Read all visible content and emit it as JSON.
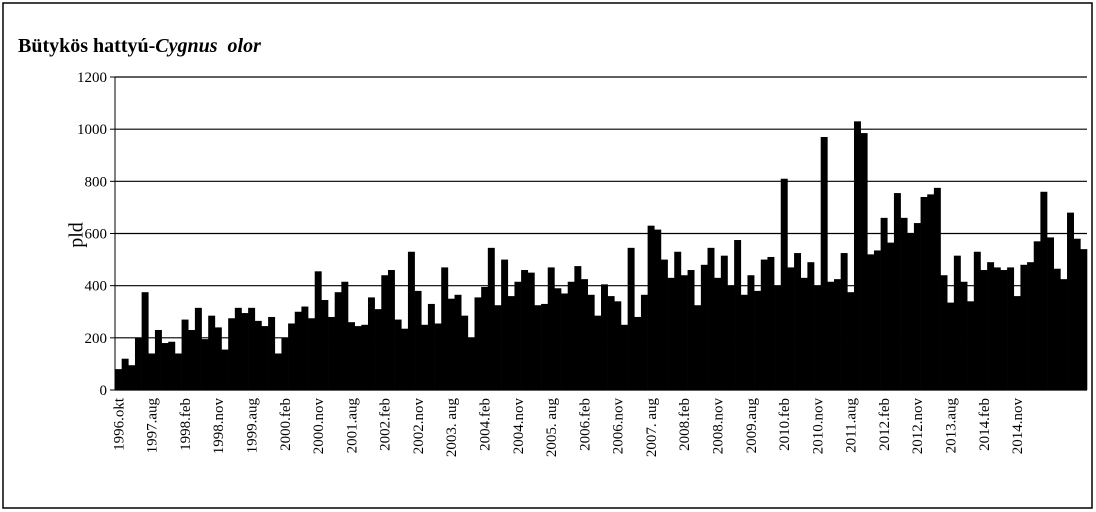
{
  "chart_data": {
    "type": "bar",
    "title": {
      "text": "Bütykös hattyú-",
      "species": "Cygnus  olor"
    },
    "y_label": "pld",
    "color": "#000000",
    "grid": true,
    "ylim": [
      0,
      1200
    ],
    "yticks": [
      0,
      200,
      400,
      600,
      800,
      1000,
      1200
    ],
    "categories": [
      "1996.okt",
      null,
      null,
      null,
      null,
      "1997.aug",
      null,
      null,
      null,
      null,
      "1998.feb",
      null,
      null,
      null,
      null,
      "1998.nov",
      null,
      null,
      null,
      null,
      "1999.aug",
      null,
      null,
      null,
      null,
      "2000.feb",
      null,
      null,
      null,
      null,
      "2000.nov",
      null,
      null,
      null,
      null,
      "2001.aug",
      null,
      null,
      null,
      null,
      "2002.feb",
      null,
      null,
      null,
      null,
      "2002.nov",
      null,
      null,
      null,
      null,
      "2003. aug",
      null,
      null,
      null,
      null,
      "2004.feb",
      null,
      null,
      null,
      null,
      "2004.nov",
      null,
      null,
      null,
      null,
      "2005. aug",
      null,
      null,
      null,
      null,
      "2006.feb",
      null,
      null,
      null,
      null,
      "2006.nov",
      null,
      null,
      null,
      null,
      "2007. aug",
      null,
      null,
      null,
      null,
      "2008.feb",
      null,
      null,
      null,
      null,
      "2008.nov",
      null,
      null,
      null,
      null,
      "2009.aug",
      null,
      null,
      null,
      null,
      "2010.feb",
      null,
      null,
      null,
      null,
      "2010.nov",
      null,
      null,
      null,
      null,
      "2011.aug",
      null,
      null,
      null,
      null,
      "2012.feb",
      null,
      null,
      null,
      null,
      "2012.nov",
      null,
      null,
      null,
      null,
      "2013.aug",
      null,
      null,
      null,
      null,
      "2014.feb",
      null,
      null,
      null,
      null,
      "2014.nov",
      null,
      null,
      null,
      null,
      null,
      null,
      null,
      null,
      null,
      null
    ],
    "values": [
      80,
      120,
      95,
      200,
      375,
      140,
      230,
      180,
      185,
      140,
      270,
      230,
      315,
      195,
      285,
      240,
      155,
      275,
      315,
      295,
      315,
      265,
      245,
      280,
      140,
      200,
      255,
      300,
      320,
      275,
      455,
      345,
      280,
      375,
      415,
      260,
      245,
      250,
      355,
      310,
      440,
      460,
      270,
      235,
      530,
      380,
      250,
      330,
      255,
      470,
      350,
      365,
      285,
      200,
      355,
      395,
      545,
      325,
      500,
      360,
      415,
      460,
      450,
      325,
      330,
      470,
      390,
      370,
      415,
      475,
      425,
      365,
      285,
      405,
      360,
      340,
      250,
      545,
      280,
      365,
      630,
      615,
      500,
      430,
      530,
      440,
      460,
      325,
      480,
      545,
      430,
      515,
      400,
      575,
      365,
      440,
      380,
      500,
      510,
      400,
      810,
      470,
      525,
      430,
      490,
      400,
      970,
      415,
      425,
      525,
      375,
      1030,
      985,
      520,
      535,
      660,
      565,
      755,
      660,
      600,
      640,
      740,
      750,
      775,
      440,
      335,
      515,
      415,
      340,
      530,
      460,
      490,
      470,
      460,
      470,
      360,
      480,
      490,
      570,
      760,
      585,
      465,
      425,
      680,
      580,
      540
    ]
  }
}
